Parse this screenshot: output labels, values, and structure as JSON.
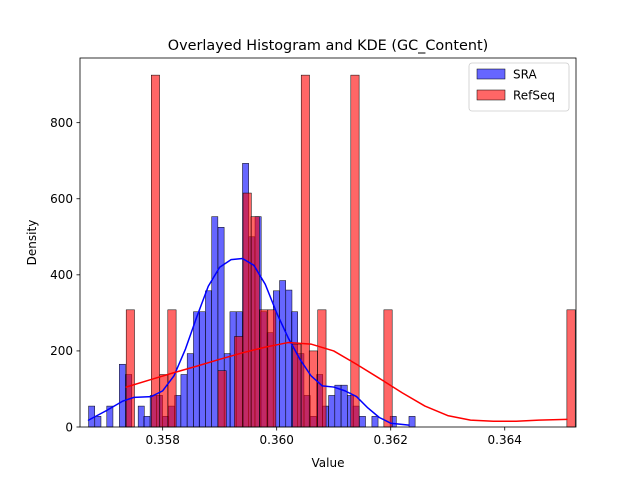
{
  "chart_data": {
    "type": "bar",
    "title": "Overlayed Histogram and KDE (GC_Content)",
    "xlabel": "Value",
    "ylabel": "Density",
    "xlim": [
      0.35655,
      0.36525
    ],
    "ylim": [
      0,
      970
    ],
    "xticks": [
      0.358,
      0.36,
      0.362,
      0.364
    ],
    "xtick_labels": [
      "0.358",
      "0.360",
      "0.362",
      "0.364"
    ],
    "yticks": [
      0,
      200,
      400,
      600,
      800
    ],
    "ytick_labels": [
      "0",
      "200",
      "400",
      "600",
      "800"
    ],
    "grid": false,
    "legend_position": "top-right",
    "series": [
      {
        "name": "SRA",
        "kind": "histogram",
        "color": "#0000ff",
        "bin_width": 0.000108,
        "bins": [
          [
            0.3567,
            55
          ],
          [
            0.35681,
            28
          ],
          [
            0.35702,
            55
          ],
          [
            0.35724,
            165
          ],
          [
            0.35735,
            138
          ],
          [
            0.35757,
            55
          ],
          [
            0.35767,
            28
          ],
          [
            0.35778,
            83
          ],
          [
            0.35789,
            83
          ],
          [
            0.358,
            28
          ],
          [
            0.3581,
            55
          ],
          [
            0.35821,
            83
          ],
          [
            0.35832,
            138
          ],
          [
            0.35843,
            193
          ],
          [
            0.35854,
            303
          ],
          [
            0.35864,
            303
          ],
          [
            0.35875,
            358
          ],
          [
            0.35886,
            553
          ],
          [
            0.35897,
            525
          ],
          [
            0.35908,
            193
          ],
          [
            0.35918,
            303
          ],
          [
            0.35929,
            303
          ],
          [
            0.3594,
            693
          ],
          [
            0.35951,
            500
          ],
          [
            0.35962,
            553
          ],
          [
            0.35972,
            303
          ],
          [
            0.35983,
            248
          ],
          [
            0.35994,
            358
          ],
          [
            0.36005,
            385
          ],
          [
            0.36016,
            360
          ],
          [
            0.36026,
            303
          ],
          [
            0.36037,
            193
          ],
          [
            0.36048,
            83
          ],
          [
            0.36059,
            28
          ],
          [
            0.3607,
            138
          ],
          [
            0.3608,
            55
          ],
          [
            0.36091,
            83
          ],
          [
            0.36102,
            110
          ],
          [
            0.36113,
            110
          ],
          [
            0.36124,
            83
          ],
          [
            0.36134,
            55
          ],
          [
            0.36145,
            28
          ],
          [
            0.36167,
            28
          ],
          [
            0.36199,
            28
          ],
          [
            0.36232,
            28
          ]
        ],
        "kde": [
          [
            0.3567,
            18
          ],
          [
            0.357,
            42
          ],
          [
            0.3573,
            68
          ],
          [
            0.3575,
            78
          ],
          [
            0.3578,
            80
          ],
          [
            0.358,
            95
          ],
          [
            0.3582,
            135
          ],
          [
            0.3584,
            205
          ],
          [
            0.3586,
            290
          ],
          [
            0.3588,
            370
          ],
          [
            0.359,
            420
          ],
          [
            0.3592,
            440
          ],
          [
            0.3594,
            443
          ],
          [
            0.3596,
            425
          ],
          [
            0.3598,
            375
          ],
          [
            0.36,
            300
          ],
          [
            0.3602,
            235
          ],
          [
            0.3604,
            180
          ],
          [
            0.3606,
            135
          ],
          [
            0.3608,
            108
          ],
          [
            0.361,
            105
          ],
          [
            0.3612,
            95
          ],
          [
            0.3614,
            80
          ],
          [
            0.3616,
            50
          ],
          [
            0.3618,
            25
          ],
          [
            0.362,
            10
          ],
          [
            0.36232,
            5
          ]
        ]
      },
      {
        "name": "RefSeq",
        "kind": "histogram",
        "color": "#ff0000",
        "bin_width": 0.000146,
        "bins": [
          [
            0.35736,
            308
          ],
          [
            0.3578,
            925
          ],
          [
            0.35795,
            138
          ],
          [
            0.35809,
            308
          ],
          [
            0.35897,
            148
          ],
          [
            0.35926,
            238
          ],
          [
            0.35941,
            615
          ],
          [
            0.35955,
            553
          ],
          [
            0.3597,
            308
          ],
          [
            0.35984,
            308
          ],
          [
            0.36028,
            218
          ],
          [
            0.36043,
            925
          ],
          [
            0.36057,
            200
          ],
          [
            0.36072,
            308
          ],
          [
            0.3613,
            925
          ],
          [
            0.36188,
            308
          ],
          [
            0.36509,
            308
          ]
        ],
        "kde": [
          [
            0.35736,
            105
          ],
          [
            0.3578,
            125
          ],
          [
            0.3582,
            143
          ],
          [
            0.3586,
            160
          ],
          [
            0.359,
            178
          ],
          [
            0.3594,
            195
          ],
          [
            0.3598,
            210
          ],
          [
            0.3602,
            222
          ],
          [
            0.3606,
            218
          ],
          [
            0.361,
            200
          ],
          [
            0.3614,
            165
          ],
          [
            0.3618,
            128
          ],
          [
            0.3622,
            90
          ],
          [
            0.3626,
            55
          ],
          [
            0.363,
            30
          ],
          [
            0.3634,
            18
          ],
          [
            0.3638,
            15
          ],
          [
            0.3642,
            15
          ],
          [
            0.3646,
            18
          ],
          [
            0.36509,
            20
          ]
        ]
      }
    ]
  }
}
